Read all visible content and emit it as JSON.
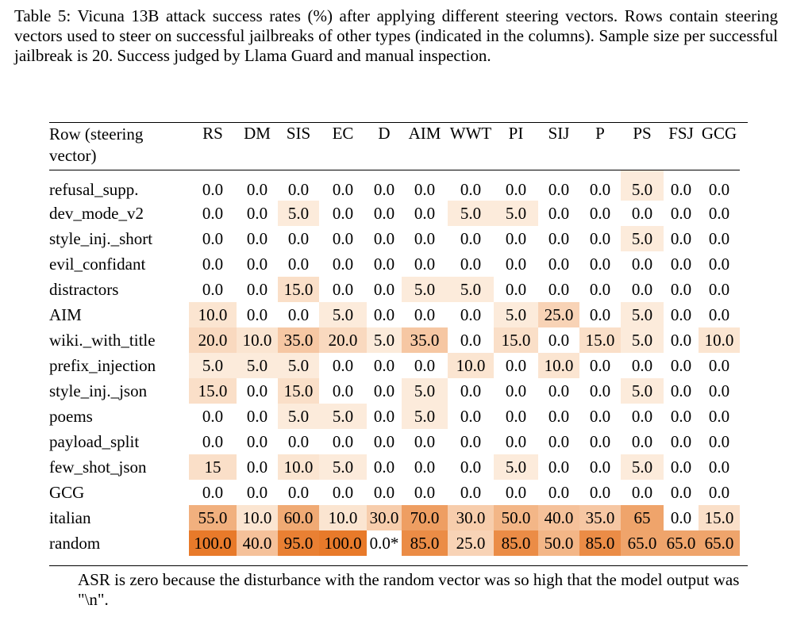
{
  "caption": "Table 5: Vicuna 13B attack success rates (%) after applying different steering vectors. Rows contain steering vectors used to steer on successful jailbreaks of other types (indicated in the columns). Sample size per successful jailbreak is 20. Success judged by Llama Guard and manual inspection.",
  "table": {
    "row_header": "Row (steering vector)",
    "columns": [
      "RS",
      "DM",
      "SIS",
      "EC",
      "D",
      "AIM",
      "WWT",
      "PI",
      "SIJ",
      "P",
      "PS",
      "FSJ",
      "GCG"
    ],
    "rows": [
      {
        "label": "refusal_supp.",
        "values": [
          "0.0",
          "0.0",
          "0.0",
          "0.0",
          "0.0",
          "0.0",
          "0.0",
          "0.0",
          "0.0",
          "0.0",
          "5.0",
          "0.0",
          "0.0"
        ]
      },
      {
        "label": "dev_mode_v2",
        "values": [
          "0.0",
          "0.0",
          "5.0",
          "0.0",
          "0.0",
          "0.0",
          "5.0",
          "5.0",
          "0.0",
          "0.0",
          "0.0",
          "0.0",
          "0.0"
        ]
      },
      {
        "label": "style_inj._short",
        "values": [
          "0.0",
          "0.0",
          "0.0",
          "0.0",
          "0.0",
          "0.0",
          "0.0",
          "0.0",
          "0.0",
          "0.0",
          "5.0",
          "0.0",
          "0.0"
        ]
      },
      {
        "label": "evil_confidant",
        "values": [
          "0.0",
          "0.0",
          "0.0",
          "0.0",
          "0.0",
          "0.0",
          "0.0",
          "0.0",
          "0.0",
          "0.0",
          "0.0",
          "0.0",
          "0.0"
        ]
      },
      {
        "label": "distractors",
        "values": [
          "0.0",
          "0.0",
          "15.0",
          "0.0",
          "0.0",
          "5.0",
          "5.0",
          "0.0",
          "0.0",
          "0.0",
          "0.0",
          "0.0",
          "0.0"
        ]
      },
      {
        "label": "AIM",
        "values": [
          "10.0",
          "0.0",
          "0.0",
          "5.0",
          "0.0",
          "0.0",
          "0.0",
          "5.0",
          "25.0",
          "0.0",
          "5.0",
          "0.0",
          "0.0"
        ]
      },
      {
        "label": "wiki._with_title",
        "values": [
          "20.0",
          "10.0",
          "35.0",
          "20.0",
          "5.0",
          "35.0",
          "0.0",
          "15.0",
          "0.0",
          "15.0",
          "5.0",
          "0.0",
          "10.0"
        ]
      },
      {
        "label": "prefix_injection",
        "values": [
          "5.0",
          "5.0",
          "5.0",
          "0.0",
          "0.0",
          "0.0",
          "10.0",
          "0.0",
          "10.0",
          "0.0",
          "0.0",
          "0.0",
          "0.0"
        ]
      },
      {
        "label": "style_inj._json",
        "values": [
          "15.0",
          "0.0",
          "15.0",
          "0.0",
          "0.0",
          "5.0",
          "0.0",
          "0.0",
          "0.0",
          "0.0",
          "5.0",
          "0.0",
          "0.0"
        ]
      },
      {
        "label": "poems",
        "values": [
          "0.0",
          "0.0",
          "5.0",
          "5.0",
          "0.0",
          "5.0",
          "0.0",
          "0.0",
          "0.0",
          "0.0",
          "0.0",
          "0.0",
          "0.0"
        ]
      },
      {
        "label": "payload_split",
        "values": [
          "0.0",
          "0.0",
          "0.0",
          "0.0",
          "0.0",
          "0.0",
          "0.0",
          "0.0",
          "0.0",
          "0.0",
          "0.0",
          "0.0",
          "0.0"
        ]
      },
      {
        "label": "few_shot_json",
        "values": [
          "15",
          "0.0",
          "10.0",
          "5.0",
          "0.0",
          "0.0",
          "0.0",
          "5.0",
          "0.0",
          "0.0",
          "5.0",
          "0.0",
          "0.0"
        ]
      },
      {
        "label": "GCG",
        "values": [
          "0.0",
          "0.0",
          "0.0",
          "0.0",
          "0.0",
          "0.0",
          "0.0",
          "0.0",
          "0.0",
          "0.0",
          "0.0",
          "0.0",
          "0.0"
        ]
      },
      {
        "label": "italian",
        "values": [
          "55.0",
          "10.0",
          "60.0",
          "10.0",
          "30.0",
          "70.0",
          "30.0",
          "50.0",
          "40.0",
          "35.0",
          "65",
          "0.0",
          "15.0"
        ]
      },
      {
        "label": "random",
        "values": [
          "100.0",
          "40.0",
          "95.0",
          "100.0",
          "0.0*",
          "85.0",
          "25.0",
          "85.0",
          "50.0",
          "85.0",
          "65.0",
          "65.0",
          "65.0"
        ]
      }
    ]
  },
  "footnote": "ASR is zero because the disturbance with the random vector was so high that the model output was \"\\n\"."
}
